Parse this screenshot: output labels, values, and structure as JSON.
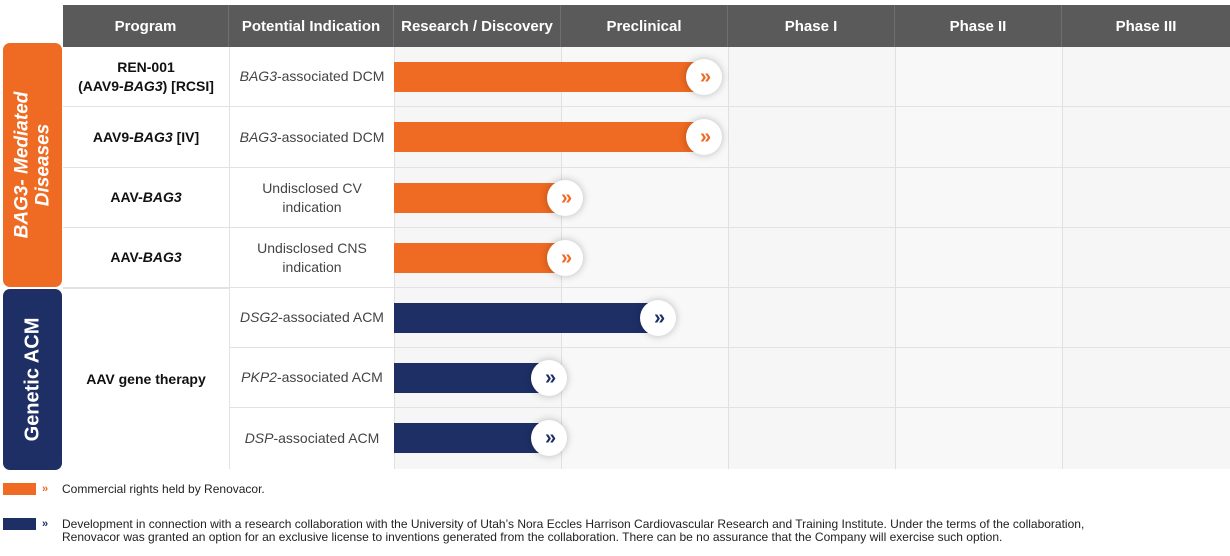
{
  "colors": {
    "orange": "#ef6a22",
    "navy": "#1e2f66",
    "header": "#5a5a5a"
  },
  "headers": [
    "Program",
    "Potential Indication",
    "Research / Discovery",
    "Preclinical",
    "Phase I",
    "Phase II",
    "Phase III"
  ],
  "groups": [
    {
      "label_line1": "BAG3- Mediated",
      "label_line2": "Diseases"
    },
    {
      "label_line1": "Genetic ACM"
    }
  ],
  "rows": [
    {
      "program_pre": "REN-001",
      "program_line2_pre": "(AAV9-",
      "program_line2_em": "BAG3",
      "program_line2_post": ") [RCSI]",
      "ind_em": "BAG3",
      "ind_post": "-associated DCM",
      "progress_pct": 100
    },
    {
      "program_pre": "AAV9-",
      "program_em": "BAG3",
      "program_post": " [IV]",
      "ind_em": "BAG3",
      "ind_post": "-associated DCM",
      "progress_pct": 100
    },
    {
      "program_pre": "AAV-",
      "program_em": "BAG3",
      "ind_line1": "Undisclosed CV",
      "ind_line2": "indication",
      "progress_pct": 55
    },
    {
      "program_pre": "AAV-",
      "program_em": "BAG3",
      "ind_line1": "Undisclosed CNS",
      "ind_line2": "indication",
      "progress_pct": 55
    },
    {
      "ind_em": "DSG2",
      "ind_post": "-associated ACM",
      "progress_pct": 85
    },
    {
      "ind_em": "PKP2",
      "ind_post": "-associated ACM",
      "progress_pct": 50
    },
    {
      "ind_em": "DSP",
      "ind_post": "-associated ACM",
      "progress_pct": 50
    }
  ],
  "acm_program": "AAV gene therapy",
  "chevron": "»",
  "legend": {
    "orange_text": "Commercial rights held by Renovacor.",
    "navy_text_line1": "Development in connection with a research collaboration with the University of Utah’s Nora Eccles Harrison Cardiovascular Research and Training Institute. Under the terms of the collaboration,",
    "navy_text_line2": "Renovacor was granted an option for an exclusive license to inventions generated from the collaboration. There can be no assurance that the Company will exercise such option."
  }
}
